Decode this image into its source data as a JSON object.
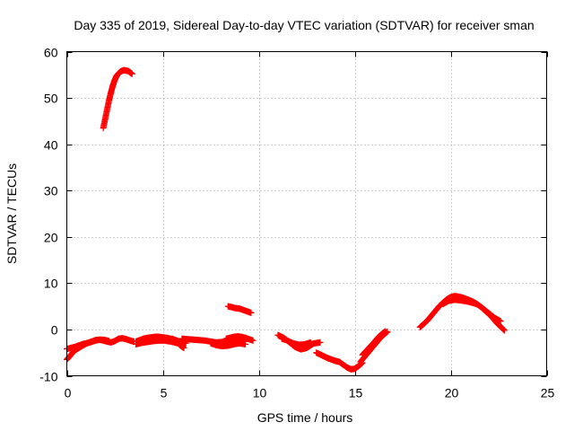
{
  "chart_data": {
    "type": "scatter",
    "title": "Day 335 of 2019, Sidereal Day-to-day VTEC variation (SDTVAR) for receiver sman",
    "xlabel": "GPS time / hours",
    "ylabel": "SDTVAR / TECUs",
    "xlim": [
      0,
      25
    ],
    "ylim": [
      -10,
      60
    ],
    "xticks": [
      0,
      5,
      10,
      15,
      20,
      25
    ],
    "yticks": [
      -10,
      0,
      10,
      20,
      30,
      40,
      50,
      60
    ],
    "xtick_labels": [
      "0",
      "5",
      "10",
      "15",
      "20",
      "25"
    ],
    "ytick_labels": [
      "-10",
      "0",
      "10",
      "20",
      "30",
      "40",
      "50",
      "60"
    ],
    "grid": true,
    "legend": "none",
    "marker": "plus",
    "color": "#ff0000",
    "series": [
      {
        "name": "arc-1",
        "x": [
          0.0,
          0.15,
          0.3,
          0.5,
          0.7,
          0.9,
          1.1,
          1.3,
          1.5,
          1.7,
          1.9,
          2.1,
          2.3,
          2.5,
          2.7,
          2.9,
          3.1,
          3.3,
          3.5
        ],
        "y": [
          -6.5,
          -5.8,
          -5.0,
          -4.3,
          -3.8,
          -3.3,
          -2.9,
          -2.6,
          -2.3,
          -2.2,
          -2.4,
          -2.6,
          -2.8,
          -2.5,
          -2.0,
          -1.9,
          -2.1,
          -2.4,
          -2.6
        ]
      },
      {
        "name": "arc-2",
        "x": [
          0.0,
          0.2,
          0.4,
          0.6,
          0.8,
          1.0,
          1.2,
          1.4,
          1.6,
          1.8,
          2.0,
          2.2
        ],
        "y": [
          -4.2,
          -4.0,
          -3.8,
          -3.5,
          -3.2,
          -3.0,
          -2.8,
          -2.5,
          -2.3,
          -2.2,
          -2.3,
          -2.5
        ]
      },
      {
        "name": "arc-3",
        "x": [
          1.9,
          2.0,
          2.1,
          2.2,
          2.3,
          2.4,
          2.5,
          2.6,
          2.7,
          2.8,
          2.9,
          3.0,
          3.1,
          3.2,
          3.3,
          3.4
        ],
        "y": [
          43.5,
          45.5,
          47.5,
          49.5,
          51.2,
          52.7,
          53.9,
          54.8,
          55.3,
          55.7,
          55.9,
          56.0,
          55.9,
          55.8,
          55.5,
          55.2
        ]
      },
      {
        "name": "arc-4",
        "x": [
          3.6,
          3.8,
          4.0,
          4.2,
          4.4,
          4.6,
          4.8,
          5.0,
          5.2,
          5.4,
          5.6,
          5.8,
          6.0,
          6.2
        ],
        "y": [
          -2.6,
          -2.3,
          -2.0,
          -1.8,
          -1.7,
          -1.6,
          -1.6,
          -1.7,
          -1.8,
          -2.0,
          -2.2,
          -2.5,
          -2.8,
          -3.0
        ]
      },
      {
        "name": "arc-5",
        "x": [
          3.6,
          3.9,
          4.2,
          4.5,
          4.8,
          5.1,
          5.4,
          5.7,
          6.0
        ],
        "y": [
          -3.2,
          -2.9,
          -2.7,
          -2.5,
          -2.4,
          -2.4,
          -2.6,
          -2.9,
          -3.2
        ]
      },
      {
        "name": "arc-6",
        "x": [
          5.5,
          5.7,
          5.9,
          6.1
        ],
        "y": [
          -2.0,
          -2.6,
          -3.4,
          -4.0
        ]
      },
      {
        "name": "arc-7",
        "x": [
          6.0,
          6.3,
          6.6,
          6.9,
          7.2,
          7.5,
          7.8,
          8.1,
          8.4,
          8.7,
          9.0,
          9.3
        ],
        "y": [
          -2.0,
          -2.1,
          -2.2,
          -2.3,
          -2.4,
          -2.6,
          -2.8,
          -2.7,
          -2.5,
          -2.4,
          -2.5,
          -2.6
        ]
      },
      {
        "name": "arc-8",
        "x": [
          7.5,
          7.8,
          8.1,
          8.4,
          8.7,
          9.0,
          9.3
        ],
        "y": [
          -3.0,
          -3.4,
          -3.6,
          -3.5,
          -3.2,
          -3.0,
          -3.2
        ]
      },
      {
        "name": "arc-9",
        "x": [
          8.3,
          8.5,
          8.7,
          8.9,
          9.1,
          9.3,
          9.5,
          9.7
        ],
        "y": [
          -2.0,
          -1.8,
          -1.6,
          -1.5,
          -1.6,
          -1.8,
          -2.1,
          -2.4
        ]
      },
      {
        "name": "arc-10",
        "x": [
          8.4,
          8.6,
          8.8,
          9.0,
          9.2,
          9.4,
          9.6
        ],
        "y": [
          5.0,
          4.8,
          4.6,
          4.5,
          4.2,
          3.9,
          3.6
        ]
      },
      {
        "name": "arc-11",
        "x": [
          11.0,
          11.3,
          11.6,
          11.9,
          12.2,
          12.5,
          12.8
        ],
        "y": [
          -1.2,
          -1.8,
          -2.8,
          -3.8,
          -4.3,
          -4.0,
          -3.2
        ]
      },
      {
        "name": "arc-12",
        "x": [
          11.2,
          11.5,
          11.8,
          12.1,
          12.4,
          12.7
        ],
        "y": [
          -2.0,
          -2.4,
          -3.0,
          -3.3,
          -3.2,
          -2.8
        ]
      },
      {
        "name": "arc-13",
        "x": [
          12.6,
          12.9,
          13.2
        ],
        "y": [
          -3.3,
          -3.0,
          -2.8
        ]
      },
      {
        "name": "arc-14",
        "x": [
          13.0,
          13.2,
          13.4,
          13.6,
          13.8,
          14.0,
          14.2
        ],
        "y": [
          -5.0,
          -5.4,
          -5.8,
          -6.2,
          -6.5,
          -6.8,
          -7.0
        ]
      },
      {
        "name": "arc-15",
        "x": [
          14.2,
          14.4,
          14.6,
          14.8,
          15.0,
          15.2,
          15.4
        ],
        "y": [
          -7.0,
          -7.6,
          -8.2,
          -8.6,
          -8.5,
          -7.9,
          -7.2
        ]
      },
      {
        "name": "arc-16",
        "x": [
          15.3,
          15.5,
          15.7,
          15.9,
          16.1,
          16.3,
          16.5,
          16.7
        ],
        "y": [
          -7.0,
          -6.0,
          -5.0,
          -4.0,
          -3.0,
          -2.0,
          -1.2,
          -0.5
        ]
      },
      {
        "name": "arc-17",
        "x": [
          15.4,
          15.6,
          15.8,
          16.0,
          16.2,
          16.4,
          16.6
        ],
        "y": [
          -5.5,
          -4.6,
          -3.7,
          -2.8,
          -1.8,
          -1.0,
          -0.4
        ]
      },
      {
        "name": "arc-18",
        "x": [
          18.4,
          18.6,
          18.8,
          19.0,
          19.2,
          19.4,
          19.6,
          19.8,
          20.0,
          20.2,
          20.4,
          20.6,
          20.8,
          21.0,
          21.2,
          21.4,
          21.6,
          21.8,
          22.0,
          22.2,
          22.4,
          22.6,
          22.8
        ],
        "y": [
          0.5,
          1.2,
          2.0,
          3.0,
          4.0,
          5.0,
          5.8,
          6.5,
          7.0,
          7.2,
          7.1,
          6.9,
          6.6,
          6.3,
          5.9,
          5.4,
          4.8,
          4.0,
          3.3,
          2.4,
          1.4,
          0.6,
          -0.2
        ]
      },
      {
        "name": "arc-19",
        "x": [
          19.6,
          19.9,
          20.2,
          20.5,
          20.8,
          21.1,
          21.4,
          21.7,
          22.0,
          22.3,
          22.6
        ],
        "y": [
          5.5,
          6.2,
          6.4,
          6.3,
          6.1,
          5.8,
          5.4,
          4.5,
          3.5,
          2.5,
          1.8
        ]
      }
    ]
  }
}
